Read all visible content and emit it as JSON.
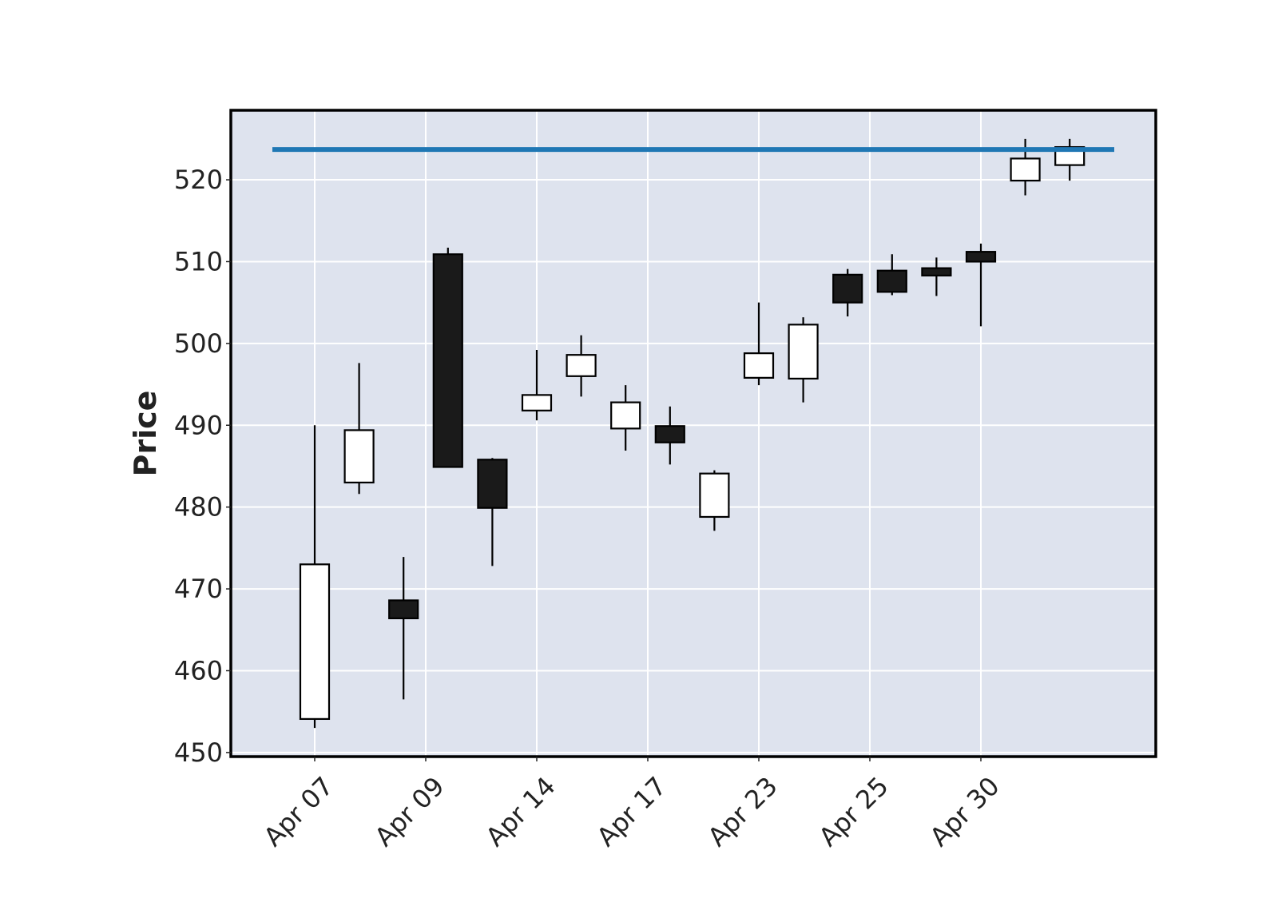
{
  "chart_data": {
    "type": "candlestick",
    "title": "",
    "xlabel": "",
    "ylabel": "Price",
    "ylim": [
      449.5,
      528.5
    ],
    "yticks": [
      450,
      460,
      470,
      480,
      490,
      500,
      510,
      520
    ],
    "xtick_labels": [
      "Apr 07",
      "Apr 09",
      "Apr 14",
      "Apr 17",
      "Apr 23",
      "Apr 25",
      "Apr 30"
    ],
    "xtick_positions": [
      0,
      2.5,
      5,
      7.5,
      10,
      12.5,
      15
    ],
    "grid": true,
    "up_color": "#ffffff",
    "down_color": "#1a1a1a",
    "line_color": "#1f77b4",
    "background": "#dee3ee",
    "candles": [
      {
        "open": 454.1,
        "high": 490.0,
        "low": 453.0,
        "close": 473.0
      },
      {
        "open": 483.0,
        "high": 497.6,
        "low": 481.6,
        "close": 489.4
      },
      {
        "open": 468.6,
        "high": 473.9,
        "low": 456.5,
        "close": 466.4
      },
      {
        "open": 510.9,
        "high": 511.7,
        "low": 484.9,
        "close": 484.9
      },
      {
        "open": 485.8,
        "high": 486.0,
        "low": 472.8,
        "close": 479.9
      },
      {
        "open": 491.8,
        "high": 499.2,
        "low": 490.6,
        "close": 493.7
      },
      {
        "open": 496.0,
        "high": 501.0,
        "low": 493.5,
        "close": 498.6
      },
      {
        "open": 489.6,
        "high": 494.9,
        "low": 486.9,
        "close": 492.8
      },
      {
        "open": 489.9,
        "high": 492.3,
        "low": 485.2,
        "close": 487.9
      },
      {
        "open": 478.8,
        "high": 484.5,
        "low": 477.1,
        "close": 484.1
      },
      {
        "open": 495.8,
        "high": 505.0,
        "low": 494.9,
        "close": 498.8
      },
      {
        "open": 495.7,
        "high": 503.2,
        "low": 492.8,
        "close": 502.3
      },
      {
        "open": 508.4,
        "high": 509.1,
        "low": 503.3,
        "close": 505.0
      },
      {
        "open": 508.9,
        "high": 510.9,
        "low": 505.9,
        "close": 506.3
      },
      {
        "open": 509.2,
        "high": 510.5,
        "low": 505.8,
        "close": 508.3
      },
      {
        "open": 511.2,
        "high": 512.2,
        "low": 502.1,
        "close": 510.0
      },
      {
        "open": 519.9,
        "high": 525.0,
        "low": 518.1,
        "close": 522.6
      },
      {
        "open": 521.8,
        "high": 525.0,
        "low": 519.9,
        "close": 524.0
      }
    ],
    "hline": 523.7
  }
}
